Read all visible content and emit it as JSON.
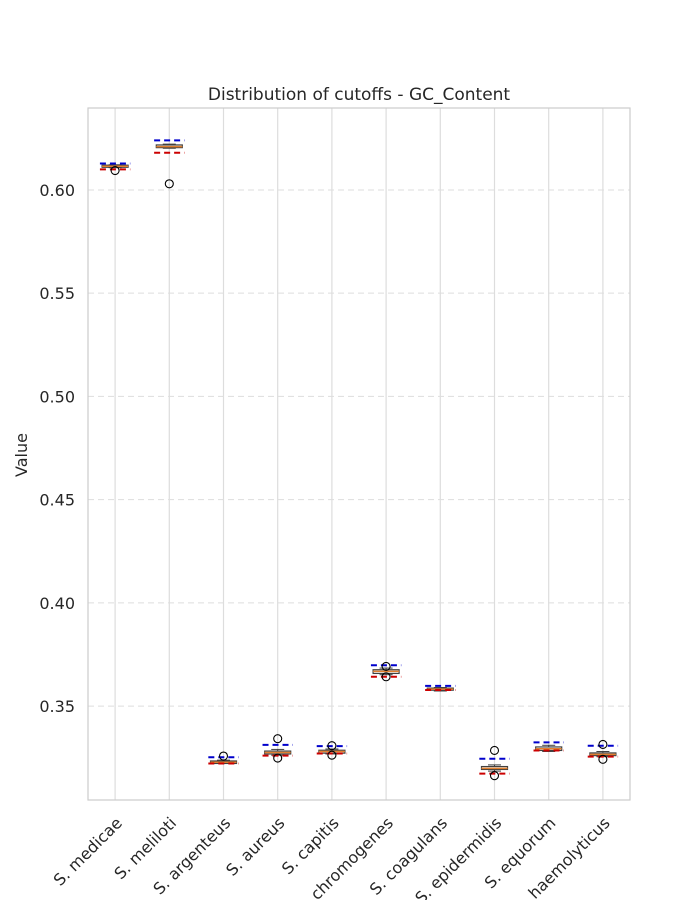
{
  "chart_data": {
    "type": "box",
    "title": "Distribution of cutoffs - GC_Content",
    "xlabel": "",
    "ylabel": "Value",
    "ylim": [
      0.3045,
      0.6397
    ],
    "yticks": [
      0.35,
      0.4,
      0.45,
      0.5,
      0.55,
      0.6
    ],
    "ytick_labels": [
      "0.35",
      "0.40",
      "0.45",
      "0.50",
      "0.55",
      "0.60"
    ],
    "grid": "y-dashed",
    "colors": {
      "upper_cutoff": "#0000cc",
      "lower_cutoff": "#cc0000",
      "median": "#e08030",
      "box_edge": "#404040",
      "grid": "#dddddd",
      "axis": "#cccccc"
    },
    "categories": [
      "S. medicae",
      "S. meliloti",
      "S. argenteus",
      "S. aureus",
      "S. capitis",
      "S. chromogenes",
      "S. coagulans",
      "S. epidermidis",
      "S. equorum",
      "S. haemolyticus"
    ],
    "tick_labels": [
      "S. medicae",
      "S. meliloti",
      "S. argenteus",
      "S. aureus",
      "S. capitis",
      "chromogenes",
      "S. coagulans",
      "S. epidermidis",
      "S. equorum",
      "haemolyticus"
    ],
    "boxes": [
      {
        "q1": 0.611,
        "median": 0.6115,
        "q3": 0.612,
        "whislo": 0.6108,
        "whishi": 0.6122,
        "fliers": [
          0.6094
        ],
        "upper": 0.6128,
        "lower": 0.61
      },
      {
        "q1": 0.6205,
        "median": 0.621,
        "q3": 0.6218,
        "whislo": 0.6202,
        "whishi": 0.6222,
        "fliers": [
          0.603
        ],
        "upper": 0.624,
        "lower": 0.618
      },
      {
        "q1": 0.3222,
        "median": 0.3228,
        "q3": 0.3234,
        "whislo": 0.3222,
        "whishi": 0.3238,
        "fliers": [
          0.3258
        ],
        "upper": 0.3252,
        "lower": 0.3222
      },
      {
        "q1": 0.3268,
        "median": 0.3275,
        "q3": 0.3282,
        "whislo": 0.3262,
        "whishi": 0.329,
        "fliers": [
          0.3342,
          0.3248
        ],
        "upper": 0.3312,
        "lower": 0.326
      },
      {
        "q1": 0.3272,
        "median": 0.328,
        "q3": 0.3286,
        "whislo": 0.3268,
        "whishi": 0.3292,
        "fliers": [
          0.3308,
          0.3262
        ],
        "upper": 0.3306,
        "lower": 0.327
      },
      {
        "q1": 0.3658,
        "median": 0.3668,
        "q3": 0.3676,
        "whislo": 0.3652,
        "whishi": 0.3684,
        "fliers": [
          0.3692,
          0.3642
        ],
        "upper": 0.3698,
        "lower": 0.3642
      },
      {
        "q1": 0.3577,
        "median": 0.3582,
        "q3": 0.3587,
        "whislo": 0.3573,
        "whishi": 0.359,
        "fliers": [],
        "upper": 0.3598,
        "lower": 0.3578
      },
      {
        "q1": 0.3193,
        "median": 0.3198,
        "q3": 0.3207,
        "whislo": 0.3185,
        "whishi": 0.3215,
        "fliers": [
          0.3285,
          0.3163
        ],
        "upper": 0.3245,
        "lower": 0.3173
      },
      {
        "q1": 0.3285,
        "median": 0.3293,
        "q3": 0.3302,
        "whislo": 0.328,
        "whishi": 0.331,
        "fliers": [],
        "upper": 0.3324,
        "lower": 0.3285
      },
      {
        "q1": 0.326,
        "median": 0.3266,
        "q3": 0.3273,
        "whislo": 0.3255,
        "whishi": 0.328,
        "fliers": [
          0.3314,
          0.3242
        ],
        "upper": 0.3308,
        "lower": 0.3255
      }
    ]
  }
}
